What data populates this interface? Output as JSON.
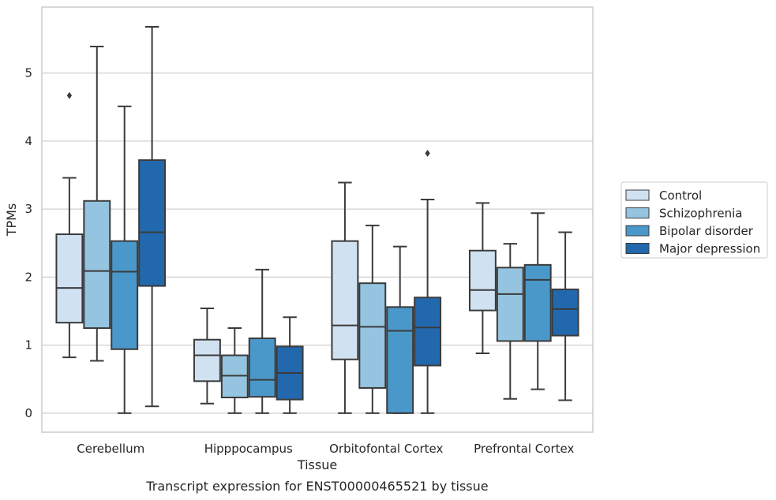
{
  "caption": "Transcript expression for ENST00000465521 by tissue",
  "chart_data": {
    "type": "box",
    "xlabel": "Tissue",
    "ylabel": "TPMs",
    "ylim": [
      -0.28,
      5.97
    ],
    "yticks": [
      0,
      1,
      2,
      3,
      4,
      5
    ],
    "grid": "horizontal",
    "legend_position": "right",
    "categories": [
      "Cerebellum",
      "Hipppocampus",
      "Orbitofontal Cortex",
      "Prefrontal Cortex"
    ],
    "series": [
      {
        "name": "Control",
        "color": "#d0e1f2",
        "boxes": [
          {
            "whislo": 0.82,
            "q1": 1.33,
            "med": 1.84,
            "q3": 2.63,
            "whishi": 3.46,
            "fliers": [
              4.67
            ]
          },
          {
            "whislo": 0.14,
            "q1": 0.47,
            "med": 0.85,
            "q3": 1.08,
            "whishi": 1.54,
            "fliers": []
          },
          {
            "whislo": 0.0,
            "q1": 0.79,
            "med": 1.29,
            "q3": 2.53,
            "whishi": 3.39,
            "fliers": []
          },
          {
            "whislo": 0.88,
            "q1": 1.51,
            "med": 1.81,
            "q3": 2.39,
            "whishi": 3.09,
            "fliers": []
          }
        ]
      },
      {
        "name": "Schizophrenia",
        "color": "#94c4df",
        "boxes": [
          {
            "whislo": 0.77,
            "q1": 1.25,
            "med": 2.09,
            "q3": 3.12,
            "whishi": 5.39,
            "fliers": []
          },
          {
            "whislo": 0.0,
            "q1": 0.23,
            "med": 0.55,
            "q3": 0.85,
            "whishi": 1.25,
            "fliers": []
          },
          {
            "whislo": 0.0,
            "q1": 0.37,
            "med": 1.27,
            "q3": 1.91,
            "whishi": 2.76,
            "fliers": []
          },
          {
            "whislo": 0.21,
            "q1": 1.06,
            "med": 1.75,
            "q3": 2.14,
            "whishi": 2.49,
            "fliers": []
          }
        ]
      },
      {
        "name": "Bipolar disorder",
        "color": "#4a98c9",
        "boxes": [
          {
            "whislo": 0.0,
            "q1": 0.94,
            "med": 2.08,
            "q3": 2.53,
            "whishi": 4.51,
            "fliers": []
          },
          {
            "whislo": 0.0,
            "q1": 0.24,
            "med": 0.49,
            "q3": 1.1,
            "whishi": 2.11,
            "fliers": []
          },
          {
            "whislo": 0.0,
            "q1": 0.0,
            "med": 1.21,
            "q3": 1.56,
            "whishi": 2.45,
            "fliers": []
          },
          {
            "whislo": 0.35,
            "q1": 1.06,
            "med": 1.96,
            "q3": 2.18,
            "whishi": 2.94,
            "fliers": []
          }
        ]
      },
      {
        "name": "Major depression",
        "color": "#2268ad",
        "boxes": [
          {
            "whislo": 0.1,
            "q1": 1.87,
            "med": 2.66,
            "q3": 3.72,
            "whishi": 5.68,
            "fliers": []
          },
          {
            "whislo": 0.0,
            "q1": 0.2,
            "med": 0.59,
            "q3": 0.98,
            "whishi": 1.41,
            "fliers": []
          },
          {
            "whislo": 0.0,
            "q1": 0.7,
            "med": 1.26,
            "q3": 1.7,
            "whishi": 3.14,
            "fliers": [
              3.82
            ]
          },
          {
            "whislo": 0.19,
            "q1": 1.14,
            "med": 1.53,
            "q3": 1.82,
            "whishi": 2.66,
            "fliers": []
          }
        ]
      }
    ]
  }
}
